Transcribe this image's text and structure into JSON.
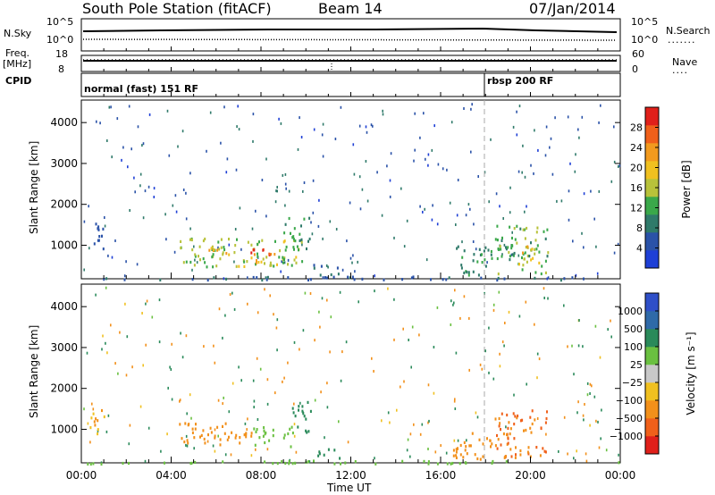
{
  "header": {
    "station": "South Pole Station (fitACF)",
    "beam": "Beam 14",
    "date": "07/Jan/2014"
  },
  "strip": {
    "nsky_label": "N.Sky",
    "nsky_ticks": [
      "10^5",
      "10^0"
    ],
    "nsearch_label": "N.Search",
    "nsearch_ticks": [
      "10^5",
      "10^0"
    ],
    "freq_label": "Freq.",
    "freq_unit": "[MHz]",
    "freq_ticks": [
      "18",
      "8"
    ],
    "nave_label": "Nave",
    "nave_ticks": [
      "60",
      "0"
    ],
    "cpid_label": "CPID",
    "cpid_segments": [
      {
        "label": "normal (fast) 151 RF",
        "start_hour": 0
      },
      {
        "label": "rbsp 200 RF",
        "start_hour": 18
      }
    ]
  },
  "colors": {
    "power": [
      "#1e3fd6",
      "#2a52a8",
      "#2f7a6a",
      "#3aa84a",
      "#b8c23a",
      "#f0c020",
      "#f29a1e",
      "#f0601a",
      "#e0201a"
    ],
    "velocity": [
      "#2f4fc8",
      "#2f6aa8",
      "#2a8a5a",
      "#6ac040",
      "#c8c8c8",
      "#f0c020",
      "#f2901a",
      "#f0601a",
      "#e0201a"
    ]
  },
  "chart_data": [
    {
      "type": "heatmap",
      "title": "",
      "xlabel": "",
      "ylabel": "Slant Range [km]",
      "x_unit": "hours UT",
      "xlim": [
        0,
        24
      ],
      "ylim": [
        180,
        4550
      ],
      "yticks": [
        "1000",
        "2000",
        "3000",
        "4000"
      ],
      "colorbar_label": "Power [dB]",
      "colorbar_ticks": [
        "4",
        "8",
        "12",
        "16",
        "20",
        "24",
        "28"
      ],
      "colorbar_range": [
        0,
        30
      ],
      "regions": [
        {
          "t0": 4.2,
          "t1": 9.8,
          "r0": 500,
          "r1": 1200,
          "value": 14
        },
        {
          "t0": 7.5,
          "t1": 8.8,
          "r0": 550,
          "r1": 950,
          "value": 26
        },
        {
          "t0": 5.0,
          "t1": 7.0,
          "r0": 800,
          "r1": 1050,
          "value": 18
        },
        {
          "t0": 9.0,
          "t1": 10.2,
          "r0": 900,
          "r1": 1700,
          "value": 10
        },
        {
          "t0": 0.3,
          "t1": 1.0,
          "r0": 900,
          "r1": 1600,
          "value": 6
        },
        {
          "t0": 16.5,
          "t1": 18.3,
          "r0": 300,
          "r1": 1000,
          "value": 10
        },
        {
          "t0": 18.4,
          "t1": 20.8,
          "r0": 300,
          "r1": 1500,
          "value": 12
        },
        {
          "t0": 19.2,
          "t1": 20.4,
          "r0": 550,
          "r1": 1000,
          "value": 18
        },
        {
          "t0": 10.3,
          "t1": 11.5,
          "r0": 300,
          "r1": 550,
          "value": 6
        },
        {
          "t0": 0.0,
          "t1": 24.0,
          "r0": 180,
          "r1": 260,
          "value": 6
        }
      ]
    },
    {
      "type": "heatmap",
      "title": "",
      "xlabel": "Time UT",
      "ylabel": "Slant Range [km]",
      "x_unit": "hours UT",
      "xlim": [
        0,
        24
      ],
      "ylim": [
        180,
        4550
      ],
      "xticks": [
        "00:00",
        "04:00",
        "08:00",
        "12:00",
        "16:00",
        "20:00",
        "00:00"
      ],
      "yticks": [
        "1000",
        "2000",
        "3000",
        "4000"
      ],
      "colorbar_label": "Velocity [m s⁻¹]",
      "colorbar_ticks": [
        "1000",
        "500",
        "100",
        "25",
        "−25",
        "−100",
        "−500",
        "−1000"
      ],
      "regions": [
        {
          "t0": 4.2,
          "t1": 7.6,
          "r0": 650,
          "r1": 1200,
          "value": -400
        },
        {
          "t0": 7.6,
          "t1": 9.5,
          "r0": 600,
          "r1": 1100,
          "value": 40
        },
        {
          "t0": 9.3,
          "t1": 10.2,
          "r0": 900,
          "r1": 1700,
          "value": 300
        },
        {
          "t0": 0.3,
          "t1": 1.0,
          "r0": 900,
          "r1": 1600,
          "value": -100
        },
        {
          "t0": 16.5,
          "t1": 18.3,
          "r0": 300,
          "r1": 1000,
          "value": -300
        },
        {
          "t0": 18.4,
          "t1": 20.8,
          "r0": 300,
          "r1": 1500,
          "value": -500
        },
        {
          "t0": 10.3,
          "t1": 11.5,
          "r0": 300,
          "r1": 550,
          "value": 400
        },
        {
          "t0": 0.0,
          "t1": 24.0,
          "r0": 180,
          "r1": 260,
          "value": 80
        }
      ]
    }
  ]
}
